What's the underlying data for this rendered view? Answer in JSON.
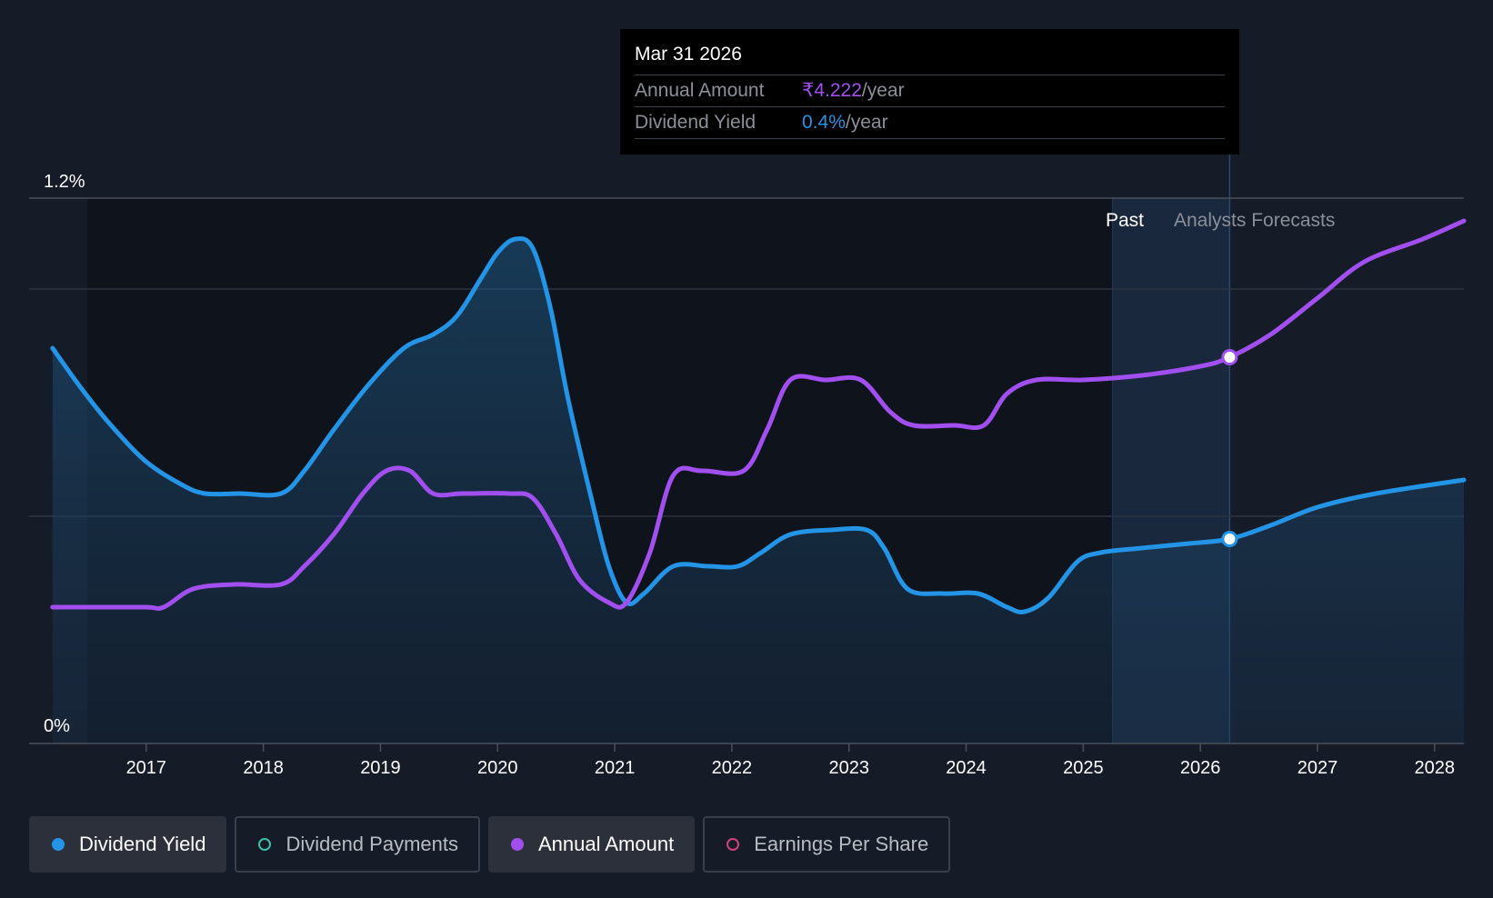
{
  "tooltip": {
    "date": "Mar 31 2026",
    "rows": [
      {
        "label": "Annual Amount",
        "value": "₹4.222",
        "unit": "/year",
        "color": "#a24ff0"
      },
      {
        "label": "Dividend Yield",
        "value": "0.4%",
        "unit": "/year",
        "color": "#2394e6"
      }
    ]
  },
  "regions": {
    "past_label": "Past",
    "forecast_label": "Analysts Forecasts"
  },
  "legend": [
    {
      "label": "Dividend Yield",
      "color": "#2394e6",
      "active": true,
      "filled": true
    },
    {
      "label": "Dividend Payments",
      "color": "#3fbfae",
      "active": false,
      "filled": false
    },
    {
      "label": "Annual Amount",
      "color": "#a24ff0",
      "active": true,
      "filled": true
    },
    {
      "label": "Earnings Per Share",
      "color": "#d0427a",
      "active": false,
      "filled": false
    }
  ],
  "chart_data": {
    "type": "line",
    "y_tick_labels": [
      "1.2%",
      "0%"
    ],
    "ylim": [
      0,
      1.2
    ],
    "xlim": [
      2016.0,
      2028.25
    ],
    "x_tick_labels": [
      "2017",
      "2018",
      "2019",
      "2020",
      "2021",
      "2022",
      "2023",
      "2024",
      "2025",
      "2026",
      "2027",
      "2028"
    ],
    "past_start": 2025.25,
    "tooltip_x": 2026.25,
    "series": [
      {
        "name": "Dividend Yield",
        "color": "#2394e6",
        "area": true,
        "points": [
          [
            2016.2,
            0.87
          ],
          [
            2016.45,
            0.78
          ],
          [
            2016.7,
            0.7
          ],
          [
            2017.0,
            0.62
          ],
          [
            2017.3,
            0.57
          ],
          [
            2017.5,
            0.55
          ],
          [
            2017.8,
            0.55
          ],
          [
            2018.15,
            0.55
          ],
          [
            2018.35,
            0.6
          ],
          [
            2018.6,
            0.69
          ],
          [
            2018.9,
            0.79
          ],
          [
            2019.2,
            0.87
          ],
          [
            2019.45,
            0.9
          ],
          [
            2019.65,
            0.94
          ],
          [
            2019.85,
            1.02
          ],
          [
            2020.0,
            1.08
          ],
          [
            2020.15,
            1.11
          ],
          [
            2020.3,
            1.09
          ],
          [
            2020.45,
            0.96
          ],
          [
            2020.6,
            0.76
          ],
          [
            2020.8,
            0.54
          ],
          [
            2020.95,
            0.39
          ],
          [
            2021.1,
            0.31
          ],
          [
            2021.25,
            0.33
          ],
          [
            2021.5,
            0.39
          ],
          [
            2021.8,
            0.39
          ],
          [
            2022.05,
            0.39
          ],
          [
            2022.25,
            0.42
          ],
          [
            2022.5,
            0.46
          ],
          [
            2022.85,
            0.47
          ],
          [
            2023.15,
            0.47
          ],
          [
            2023.3,
            0.43
          ],
          [
            2023.5,
            0.34
          ],
          [
            2023.8,
            0.33
          ],
          [
            2024.1,
            0.33
          ],
          [
            2024.35,
            0.3
          ],
          [
            2024.5,
            0.29
          ],
          [
            2024.7,
            0.32
          ],
          [
            2024.95,
            0.4
          ],
          [
            2025.15,
            0.42
          ],
          [
            2025.5,
            0.43
          ],
          [
            2025.9,
            0.44
          ],
          [
            2026.25,
            0.45
          ],
          [
            2026.6,
            0.48
          ],
          [
            2027.0,
            0.52
          ],
          [
            2027.5,
            0.55
          ],
          [
            2028.25,
            0.58
          ]
        ]
      },
      {
        "name": "Annual Amount",
        "color": "#a24ff0",
        "area": false,
        "points": [
          [
            2016.2,
            0.3
          ],
          [
            2016.6,
            0.3
          ],
          [
            2017.0,
            0.3
          ],
          [
            2017.15,
            0.3
          ],
          [
            2017.4,
            0.34
          ],
          [
            2017.75,
            0.35
          ],
          [
            2018.15,
            0.35
          ],
          [
            2018.35,
            0.39
          ],
          [
            2018.6,
            0.46
          ],
          [
            2018.85,
            0.55
          ],
          [
            2019.05,
            0.6
          ],
          [
            2019.25,
            0.6
          ],
          [
            2019.45,
            0.55
          ],
          [
            2019.7,
            0.55
          ],
          [
            2020.1,
            0.55
          ],
          [
            2020.3,
            0.54
          ],
          [
            2020.5,
            0.46
          ],
          [
            2020.7,
            0.36
          ],
          [
            2020.95,
            0.31
          ],
          [
            2021.1,
            0.31
          ],
          [
            2021.3,
            0.42
          ],
          [
            2021.5,
            0.59
          ],
          [
            2021.75,
            0.6
          ],
          [
            2022.1,
            0.6
          ],
          [
            2022.3,
            0.69
          ],
          [
            2022.5,
            0.8
          ],
          [
            2022.8,
            0.8
          ],
          [
            2023.1,
            0.8
          ],
          [
            2023.35,
            0.73
          ],
          [
            2023.55,
            0.7
          ],
          [
            2023.9,
            0.7
          ],
          [
            2024.15,
            0.7
          ],
          [
            2024.35,
            0.77
          ],
          [
            2024.6,
            0.8
          ],
          [
            2025.0,
            0.8
          ],
          [
            2025.5,
            0.81
          ],
          [
            2026.0,
            0.83
          ],
          [
            2026.25,
            0.85
          ],
          [
            2026.6,
            0.9
          ],
          [
            2027.0,
            0.98
          ],
          [
            2027.4,
            1.06
          ],
          [
            2027.9,
            1.11
          ],
          [
            2028.25,
            1.15
          ]
        ]
      }
    ],
    "markers": [
      {
        "series": "Annual Amount",
        "x": 2026.25,
        "y": 0.85
      },
      {
        "series": "Dividend Yield",
        "x": 2026.25,
        "y": 0.45
      }
    ]
  }
}
